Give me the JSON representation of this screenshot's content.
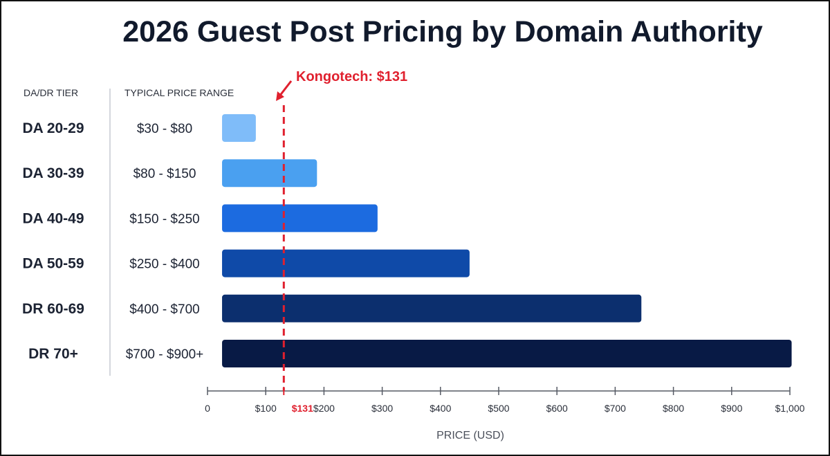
{
  "chart_data": {
    "type": "bar",
    "orientation": "horizontal",
    "title": "2026 Guest Post Pricing by Domain Authority",
    "column_headers": {
      "tier": "DA/DR TIER",
      "range": "TYPICAL PRICE RANGE"
    },
    "categories": [
      "DA 20-29",
      "DA 30-39",
      "DA 40-49",
      "DA 50-59",
      "DR 60-69",
      "DR 70+"
    ],
    "range_labels": [
      "$30 - $80",
      "$80 - $150",
      "$150 - $250",
      "$250 - $400",
      "$400 - $700",
      "$700 - $900+"
    ],
    "bars": [
      {
        "start": 25,
        "end": 83
      },
      {
        "start": 25,
        "end": 188
      },
      {
        "start": 25,
        "end": 292
      },
      {
        "start": 25,
        "end": 450
      },
      {
        "start": 25,
        "end": 745
      },
      {
        "start": 25,
        "end": 1003
      }
    ],
    "bar_colors": [
      "#7fbcf9",
      "#4aa0f0",
      "#1c6be0",
      "#0f4aa8",
      "#0c2f6e",
      "#081a45"
    ],
    "xlim": [
      0,
      1000
    ],
    "xticks": [
      0,
      100,
      200,
      300,
      400,
      500,
      600,
      700,
      800,
      900,
      1000
    ],
    "xtick_labels": [
      "0",
      "$100",
      "$200",
      "$300",
      "$400",
      "$500",
      "$600",
      "$700",
      "$800",
      "$900",
      "$1,000"
    ],
    "xlabel": "PRICE (USD)",
    "grid": false,
    "marker": {
      "value": 131,
      "label": "Kongotech: $131",
      "tick_label": "$131",
      "color": "#e0202e"
    }
  }
}
